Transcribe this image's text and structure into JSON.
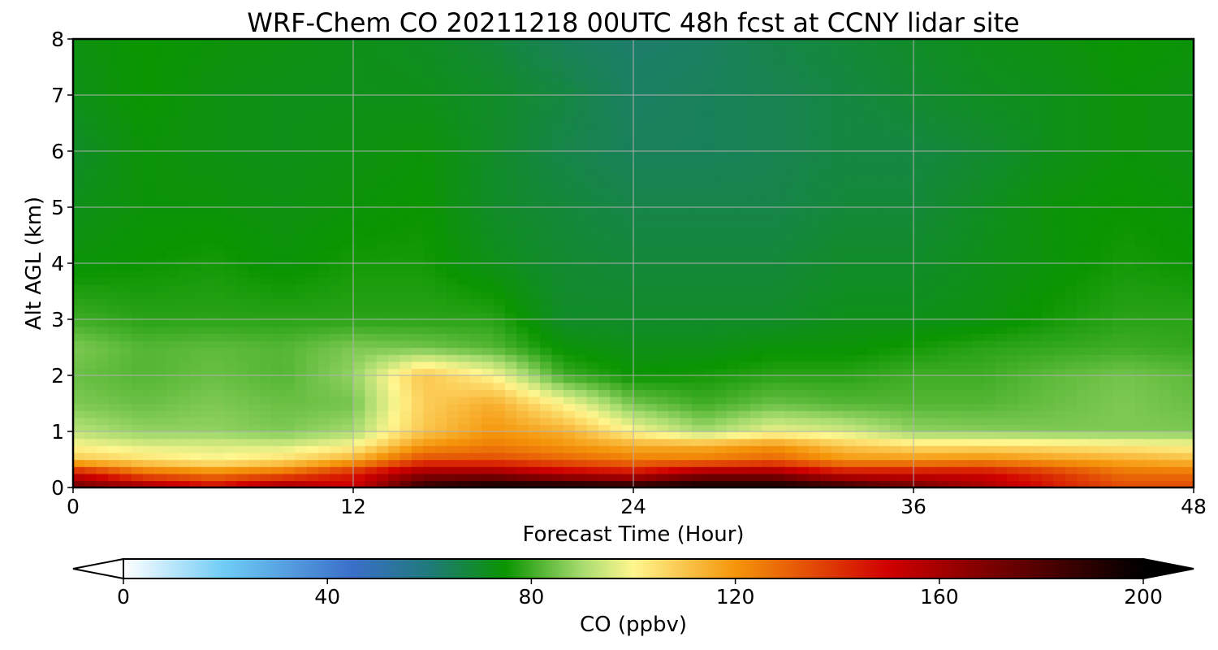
{
  "chart_data": {
    "type": "heatmap",
    "title": "WRF-Chem CO  20211218 00UTC 48h fcst at CCNY lidar site",
    "xlabel": "Forecast Time (Hour)",
    "ylabel": "Alt AGL (km)",
    "xlim": [
      0,
      48
    ],
    "ylim": [
      0,
      8
    ],
    "x_ticks": [
      0,
      12,
      24,
      36,
      48
    ],
    "y_ticks": [
      0,
      1,
      2,
      3,
      4,
      5,
      6,
      7,
      8
    ],
    "grid": true,
    "x_hours": [
      0,
      3,
      6,
      9,
      12,
      15,
      18,
      21,
      24,
      27,
      30,
      33,
      36,
      39,
      42,
      45,
      48
    ],
    "altitudes_km": [
      0,
      0.25,
      0.5,
      0.75,
      1.0,
      1.5,
      2.0,
      2.5,
      3.0,
      4.0,
      5.0,
      6.0,
      7.0,
      8.0
    ],
    "co_ppbv": [
      [
        175,
        165,
        150,
        165,
        150,
        190,
        200,
        200,
        195,
        200,
        200,
        190,
        175,
        160,
        145,
        135,
        135
      ],
      [
        150,
        130,
        125,
        130,
        145,
        165,
        165,
        155,
        150,
        165,
        165,
        150,
        150,
        150,
        140,
        128,
        128
      ],
      [
        110,
        105,
        100,
        105,
        115,
        135,
        135,
        130,
        125,
        125,
        130,
        120,
        120,
        122,
        118,
        115,
        112
      ],
      [
        100,
        96,
        96,
        95,
        100,
        120,
        125,
        120,
        115,
        115,
        120,
        110,
        105,
        105,
        104,
        102,
        100
      ],
      [
        92,
        88,
        88,
        86,
        90,
        110,
        120,
        115,
        100,
        90,
        98,
        95,
        88,
        87,
        86,
        86,
        86
      ],
      [
        86,
        84,
        86,
        84,
        85,
        108,
        115,
        100,
        85,
        80,
        84,
        82,
        82,
        82,
        84,
        86,
        84
      ],
      [
        84,
        82,
        84,
        82,
        88,
        110,
        100,
        80,
        75,
        76,
        78,
        78,
        80,
        80,
        83,
        85,
        83
      ],
      [
        86,
        82,
        83,
        82,
        86,
        85,
        82,
        74,
        72,
        72,
        74,
        74,
        76,
        78,
        79,
        80,
        79
      ],
      [
        80,
        78,
        78,
        78,
        78,
        78,
        78,
        70,
        70,
        70,
        70,
        72,
        72,
        73,
        76,
        78,
        78
      ],
      [
        74,
        75,
        76,
        74,
        76,
        76,
        72,
        69,
        68,
        68,
        68,
        70,
        70,
        72,
        74,
        76,
        75
      ],
      [
        72,
        74,
        74,
        73,
        74,
        75,
        70,
        68,
        66,
        66,
        66,
        68,
        68,
        71,
        74,
        75,
        74
      ],
      [
        70,
        74,
        73,
        72,
        73,
        74,
        70,
        66,
        64,
        64,
        65,
        67,
        67,
        69,
        72,
        74,
        73
      ],
      [
        72,
        75,
        73,
        72,
        72,
        72,
        70,
        67,
        63,
        64,
        65,
        67,
        69,
        71,
        72,
        74,
        73
      ],
      [
        73,
        75,
        74,
        73,
        72,
        71,
        68,
        64,
        62,
        63,
        66,
        68,
        70,
        72,
        73,
        75,
        74
      ]
    ],
    "colorbar": {
      "label": "CO  (ppbv)",
      "min": 0,
      "max": 200,
      "ticks": [
        0,
        40,
        80,
        120,
        160,
        200
      ],
      "extend": "both",
      "color_stops": [
        {
          "v": 0,
          "c": "#ffffff"
        },
        {
          "v": 20,
          "c": "#6ecbf5"
        },
        {
          "v": 45,
          "c": "#3a6fc9"
        },
        {
          "v": 60,
          "c": "#1f7a7a"
        },
        {
          "v": 75,
          "c": "#0a9500"
        },
        {
          "v": 90,
          "c": "#a8dc70"
        },
        {
          "v": 100,
          "c": "#fff68e"
        },
        {
          "v": 120,
          "c": "#f5950a"
        },
        {
          "v": 150,
          "c": "#d00000"
        },
        {
          "v": 170,
          "c": "#7a0000"
        },
        {
          "v": 200,
          "c": "#000000"
        }
      ],
      "under_color": "#ffffff",
      "over_color": "#000000"
    }
  }
}
